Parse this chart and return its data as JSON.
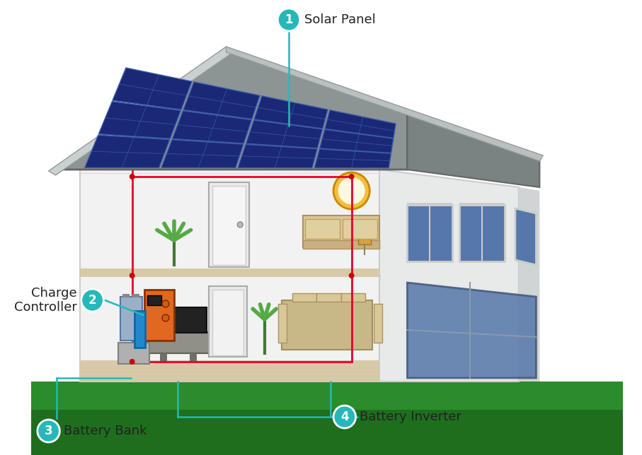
{
  "bg_color": "#ffffff",
  "teal_color": "#26b8b8",
  "red_wire_color": "#e8002d",
  "roof_color": "#8c9494",
  "roof_light": "#b0b8b8",
  "roof_dark": "#7a8282",
  "wall_color": "#f2f2f2",
  "wall_right_color": "#e0e2e2",
  "wall_side_color": "#d5d8d8",
  "solar_panel_color": "#1a2875",
  "solar_panel_line": "#3a5aaa",
  "grass_color": "#2a8c2a",
  "grass_dark": "#1e6e1e",
  "window_color": "#5577aa",
  "window_frame": "#cccccc",
  "floor_color": "#d8c898",
  "ceiling_color": "#e8e8e8",
  "door_color": "#e0e0e0",
  "lamp_color": "#f0c040",
  "sofa_color": "#d8c898",
  "table_color": "#c8b888",
  "tv_color": "#222222",
  "plant_color": "#55aa44",
  "plant_stem": "#447733",
  "cc_box_color": "#e06820",
  "cc_box_edge": "#883300",
  "battery_color": "#9ab0c8",
  "battery_edge": "#5577aa",
  "inv_blue": "#2288cc",
  "label1": "Solar Panel",
  "label2_line1": "Charge",
  "label2_line2": "Controller",
  "label3": "Battery Bank",
  "label4": "Battery Inverter",
  "label_fontsize": 13,
  "num_fontsize": 12
}
